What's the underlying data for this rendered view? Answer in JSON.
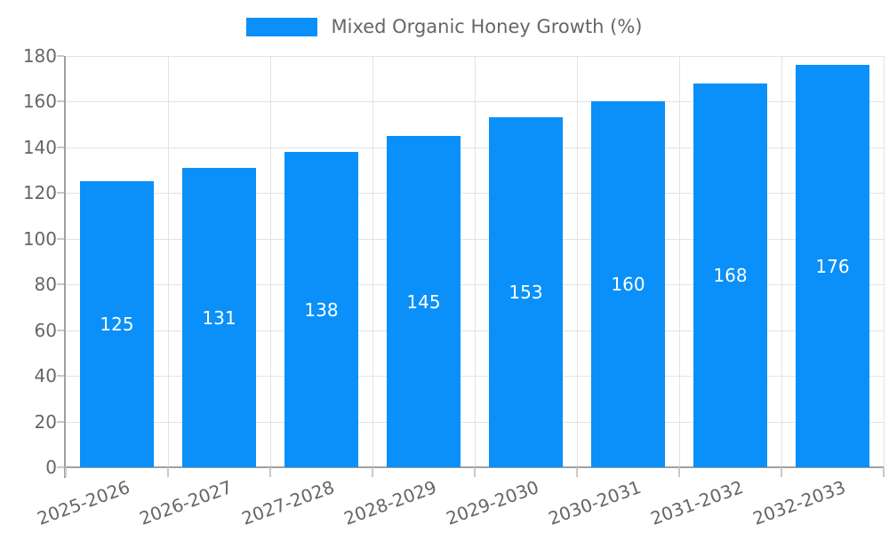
{
  "legend": {
    "label": "Mixed Organic Honey Growth (%)"
  },
  "chart_data": {
    "type": "bar",
    "title": "",
    "xlabel": "",
    "ylabel": "",
    "legend_entries": [
      "Mixed Organic Honey Growth (%)"
    ],
    "legend_position": "top",
    "categories": [
      "2025-2026",
      "2026-2027",
      "2027-2028",
      "2028-2029",
      "2029-2030",
      "2030-2031",
      "2031-2032",
      "2032-2033"
    ],
    "values": [
      125,
      131,
      138,
      145,
      153,
      160,
      168,
      176
    ],
    "bar_value_labels": [
      "125",
      "131",
      "138",
      "145",
      "153",
      "160",
      "168",
      "176"
    ],
    "ylim": [
      0,
      180
    ],
    "yticks": [
      0,
      20,
      40,
      60,
      80,
      100,
      120,
      140,
      160,
      180
    ],
    "grid": true,
    "colors": {
      "bar": "#0a90f8",
      "grid": "#e3e3e3",
      "axis": "#a0a0a0",
      "tick": "#c9c9c9",
      "tick_label": "#666666",
      "legend_text": "#666666",
      "bar_value_label": "#ffffff",
      "background": "#ffffff"
    }
  }
}
